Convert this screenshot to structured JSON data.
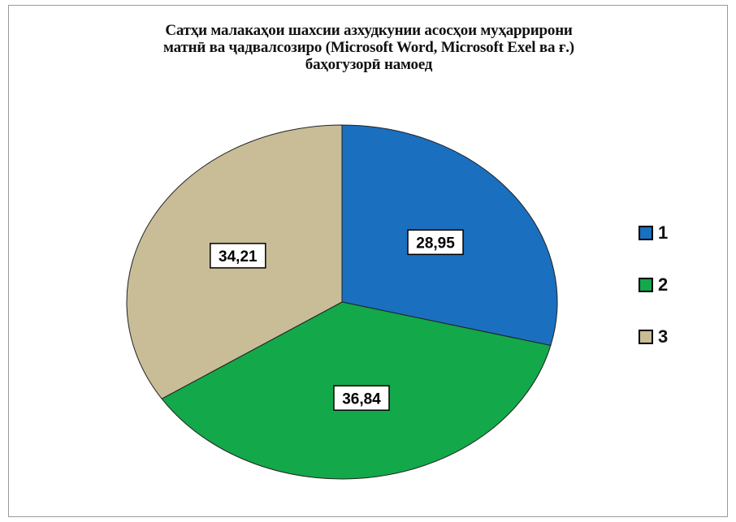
{
  "chart_data": {
    "type": "pie",
    "title_lines": [
      "Сатҳи малакаҳои шахсии азхудкунии асосҳои муҳаррирони",
      "матнӣ ва ҷадвалсозиро (Microsoft Word, Microsoft Exel ва ғ.)",
      "баҳогузорӣ намоед"
    ],
    "categories": [
      "1",
      "2",
      "3"
    ],
    "values": [
      28.95,
      36.84,
      34.21
    ],
    "data_labels": [
      "28,95",
      "36,84",
      "34,21"
    ],
    "colors": [
      "#1a6fbf",
      "#13a84a",
      "#c8bd97"
    ],
    "legend_position": "right"
  }
}
